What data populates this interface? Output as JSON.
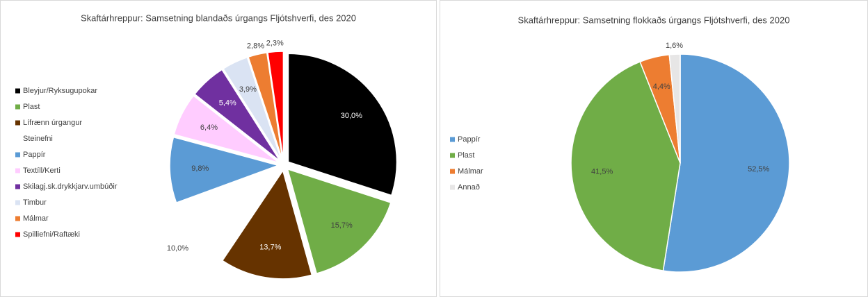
{
  "chart_data": [
    {
      "type": "pie",
      "title": "Skaftárhreppur: Samsetning blandaðs úrgangs Fljótshverfi, des 2020",
      "categories": [
        "Bleyjur/Ryksugupokar",
        "Plast",
        "Lífrænn úrgangur",
        "Steinefni",
        "Pappír",
        "Textíll/Kerti",
        "Skilagj.sk.drykkjarv.umbúðir",
        "Timbur",
        "Málmar",
        "Spilliefni/Raftæki"
      ],
      "values": [
        30.0,
        15.7,
        13.7,
        10.0,
        9.8,
        6.4,
        5.4,
        3.9,
        2.8,
        2.3
      ],
      "value_labels": [
        "30,0%",
        "15,7%",
        "13,7%",
        "10,0%",
        "9,8%",
        "6,4%",
        "5,4%",
        "3,9%",
        "2,8%",
        "2,3%"
      ],
      "colors": [
        "#000000",
        "#70ad47",
        "#663300",
        "#ffffff",
        "#5b9bd5",
        "#ffccff",
        "#7030a0",
        "#dae3f3",
        "#ed7d31",
        "#ff0000"
      ],
      "exploded": true,
      "legend": "left"
    },
    {
      "type": "pie",
      "title": "Skaftárhreppur: Samsetning flokkaðs úrgangs Fljótshverfi, des 2020",
      "categories": [
        "Pappír",
        "Plast",
        "Málmar",
        "Annað"
      ],
      "values": [
        52.5,
        41.5,
        4.4,
        1.6
      ],
      "value_labels": [
        "52,5%",
        "41,5%",
        "4,4%",
        "1,6%"
      ],
      "colors": [
        "#5b9bd5",
        "#70ad47",
        "#ed7d31",
        "#e7e6e6"
      ],
      "exploded": false,
      "legend": "left"
    }
  ]
}
